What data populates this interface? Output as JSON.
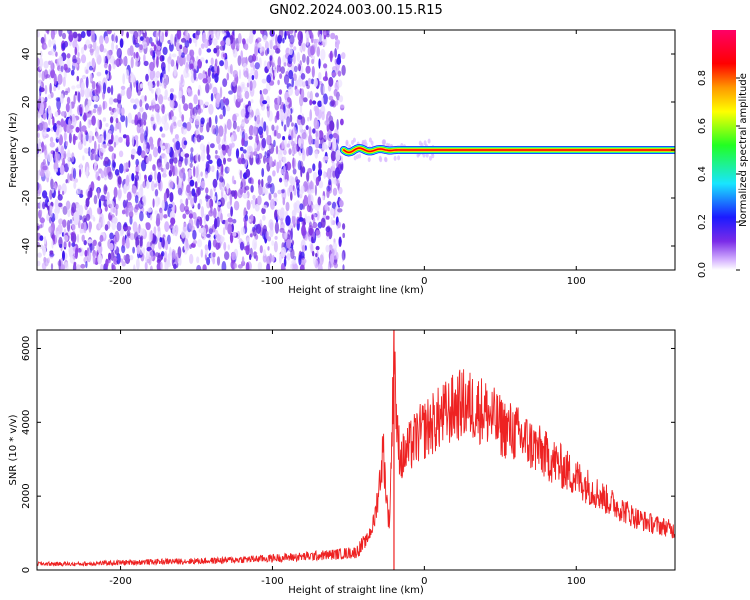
{
  "title": "GN02.2024.003.00.15.R15",
  "colors": {
    "snr_line": "#ee2222",
    "spectrogram_noise": "#7a2be8",
    "colormap": [
      "#ffffff",
      "#d7b6ff",
      "#7a2be8",
      "#1b1bff",
      "#19e5ff",
      "#22ff22",
      "#ffff00",
      "#ff9900",
      "#ff0000",
      "#ff0066"
    ]
  },
  "chart_data": [
    {
      "type": "heatmap",
      "xlabel": "Height of straight line (km)",
      "ylabel": "Frequency (Hz)",
      "xlim": [
        -255,
        165
      ],
      "ylim": [
        -50,
        50
      ],
      "x_ticks": [
        -200,
        -100,
        0,
        100
      ],
      "x_tick_labels": [
        "-200",
        "-100",
        "0",
        "100"
      ],
      "y_ticks": [
        40,
        20,
        0,
        -20,
        -40
      ],
      "y_tick_labels": [
        "40",
        "20",
        "0",
        "-20",
        "-40"
      ],
      "noise_region_x": [
        -255,
        -53
      ],
      "signal_line": {
        "x_range": [
          -53,
          165
        ],
        "frequency_hz": 0,
        "peak_amplitude": 1.0,
        "wiggle_region_x": [
          -53,
          -15
        ]
      },
      "grid": false
    },
    {
      "type": "colorbar",
      "label": "Normalized spectral amplitude",
      "range": [
        0,
        1
      ],
      "ticks": [
        0.0,
        0.2,
        0.4,
        0.6,
        0.8
      ],
      "tick_labels": [
        "0.0",
        "0.2",
        "0.4",
        "0.6",
        "0.8"
      ]
    },
    {
      "type": "line",
      "xlabel": "Height of straight line (km)",
      "ylabel": "SNR (10 * v/v)",
      "xlim": [
        -255,
        165
      ],
      "ylim": [
        0,
        6500
      ],
      "x_ticks": [
        -200,
        -100,
        0,
        100
      ],
      "x_tick_labels": [
        "-200",
        "-100",
        "0",
        "100"
      ],
      "y_ticks": [
        0,
        2000,
        4000,
        6000
      ],
      "y_tick_labels": [
        "0",
        "2000",
        "4000",
        "6000"
      ],
      "grid": false,
      "series": [
        {
          "x": [
            -255,
            -230,
            -200,
            -170,
            -140,
            -110,
            -80,
            -60,
            -45,
            -38,
            -33,
            -30,
            -27,
            -25,
            -23,
            -21,
            -20,
            -18,
            -15,
            -10,
            -5,
            0,
            10,
            20,
            25,
            30,
            40,
            50,
            60,
            70,
            80,
            90,
            100,
            110,
            120,
            130,
            140,
            150,
            160,
            165
          ],
          "y": [
            170,
            160,
            200,
            230,
            250,
            300,
            360,
            420,
            480,
            800,
            1300,
            2200,
            3300,
            2000,
            1200,
            4200,
            6500,
            3600,
            3000,
            3300,
            3600,
            3800,
            4100,
            4400,
            4500,
            4450,
            4300,
            3900,
            3700,
            3400,
            3100,
            2800,
            2500,
            2200,
            1900,
            1650,
            1400,
            1250,
            1150,
            1050
          ]
        }
      ]
    }
  ]
}
